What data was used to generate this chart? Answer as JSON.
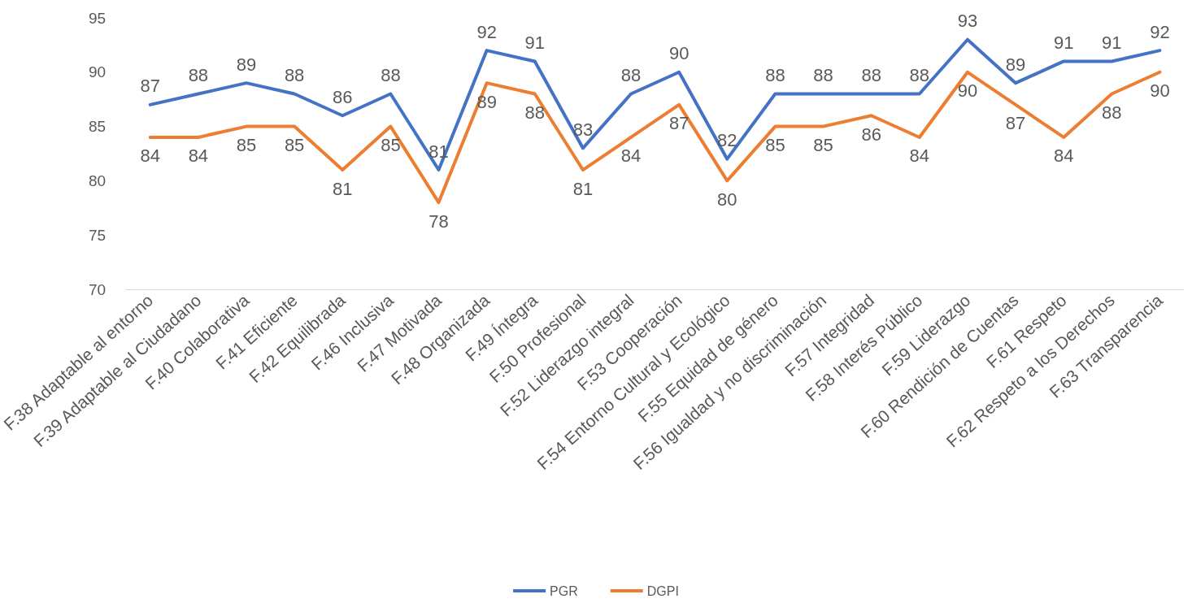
{
  "chart_data": {
    "type": "line",
    "categories": [
      "F.38 Adaptable al entorno",
      "F.39 Adaptable al Ciudadano",
      "F.40 Colaborativa",
      "F.41 Eficiente",
      "F.42 Equilibrada",
      "F.46 Inclusiva",
      "F.47 Motivada",
      "F.48 Organizada",
      "F.49 Íntegra",
      "F.50 Profesional",
      "F.52 Liderazgo integral",
      "F.53 Cooperación",
      "F.54 Entorno Cultural y Ecológico",
      "F.55 Equidad de género",
      "F.56 Igualdad y no discriminación",
      "F.57 Integridad",
      "F.58 Interés Público",
      "F.59 Liderazgo",
      "F.60 Rendición de Cuentas",
      "F.61 Respeto",
      "F.62 Respeto a los Derechos",
      "F.63 Transparencia"
    ],
    "series": [
      {
        "name": "PGR",
        "color": "#4472c4",
        "values": [
          87,
          88,
          89,
          88,
          86,
          88,
          81,
          92,
          91,
          83,
          88,
          90,
          82,
          88,
          88,
          88,
          88,
          93,
          89,
          91,
          91,
          92
        ]
      },
      {
        "name": "DGPI",
        "color": "#ed7d31",
        "values": [
          84,
          84,
          85,
          85,
          81,
          85,
          78,
          89,
          88,
          81,
          84,
          87,
          80,
          85,
          85,
          86,
          84,
          90,
          87,
          84,
          88,
          90
        ]
      }
    ],
    "ylim": [
      70,
      95
    ],
    "yticks": [
      70,
      75,
      80,
      85,
      90,
      95
    ],
    "data_labels": true,
    "grid": false,
    "legend": "bottom",
    "marker": "none",
    "line_style": "solid"
  }
}
